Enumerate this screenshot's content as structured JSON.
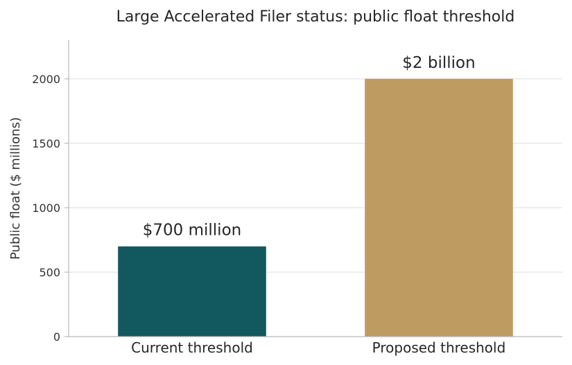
{
  "chart_data": {
    "type": "bar",
    "title": "Large Accelerated Filer status: public float threshold",
    "xlabel": "",
    "ylabel": "Public float ($ millions)",
    "categories": [
      "Current threshold",
      "Proposed threshold"
    ],
    "values": [
      700,
      2000
    ],
    "data_labels": [
      "$700 million",
      "$2 billion"
    ],
    "colors": [
      "#12585f",
      "#be9b60"
    ],
    "ylim": [
      0,
      2300
    ],
    "yticks": [
      0,
      500,
      1000,
      1500,
      2000
    ],
    "ytick_labels": [
      "0",
      "500",
      "1000",
      "1500",
      "2000"
    ],
    "grid": true,
    "legend": "none"
  }
}
